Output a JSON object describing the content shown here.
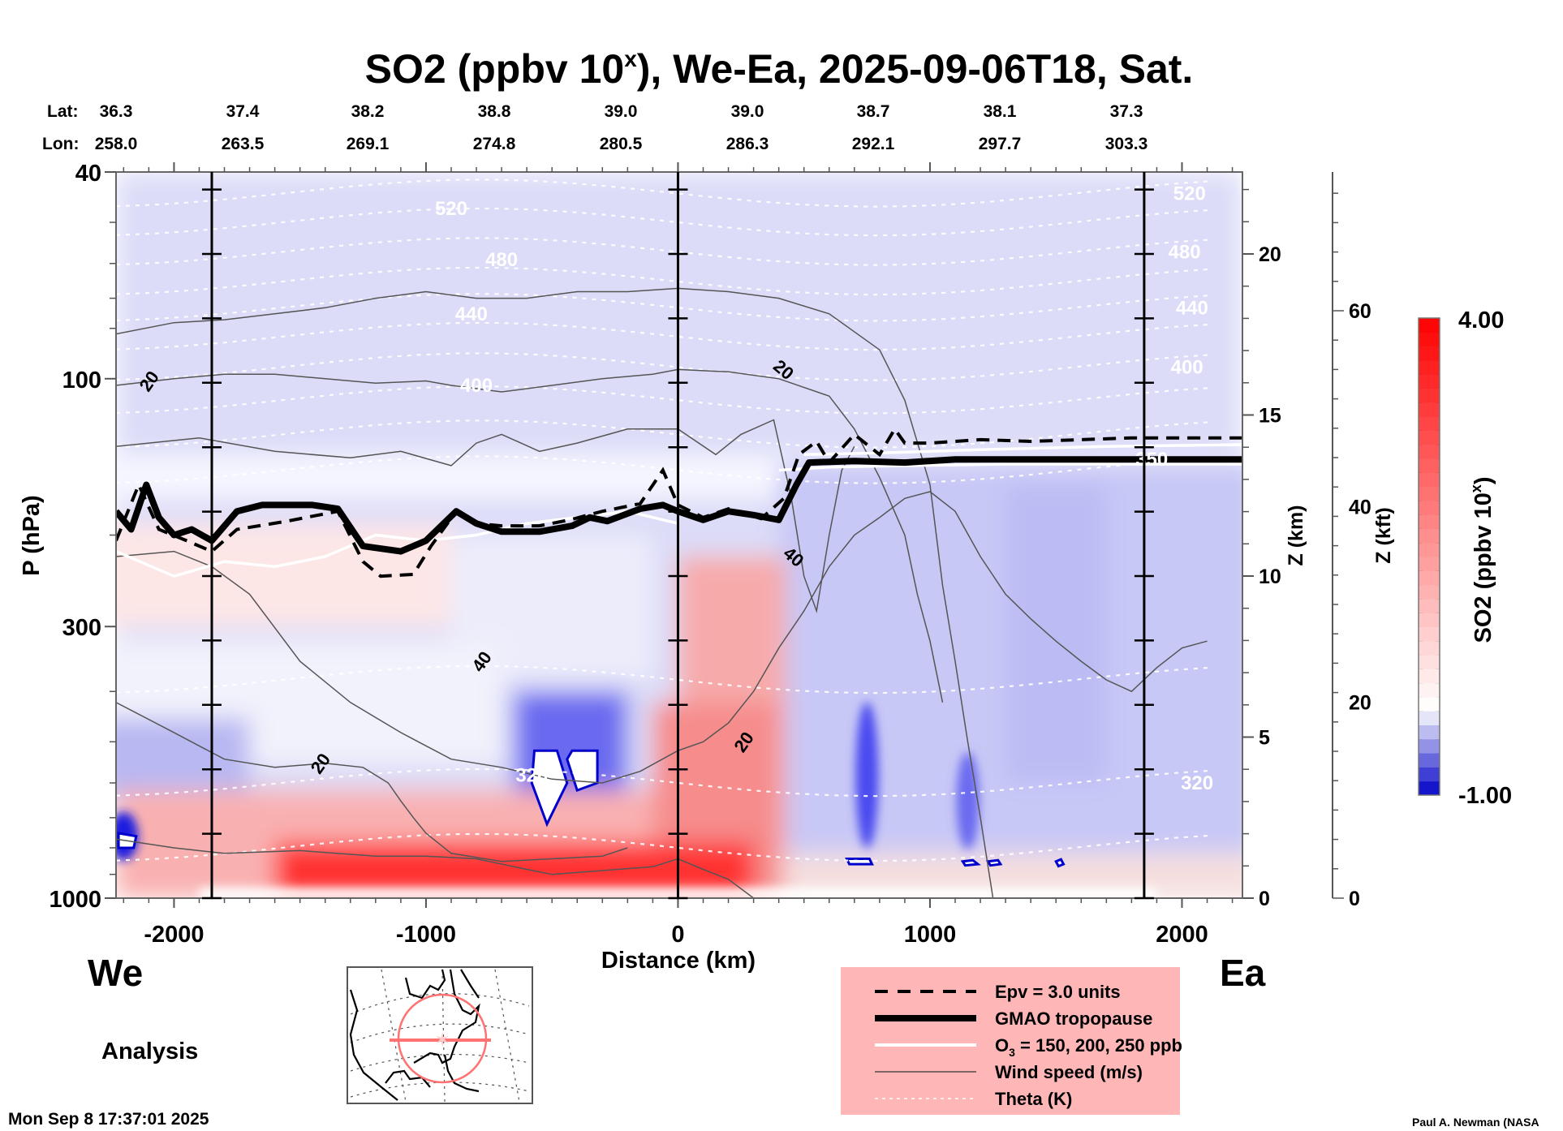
{
  "chart_data": {
    "type": "heatmap",
    "title": "SO2 (ppbv 10",
    "title_superscript": "x",
    "title_suffix": "), We-Ea, 2025-09-06T18, Sat.",
    "xlabel": "Distance (km)",
    "ylabel": "P (hPa)",
    "y2label": "Z (km)",
    "y3label": "Z (kft)",
    "colorbar_label": "SO2 (ppbv 10",
    "colorbar_label_sup": "x",
    "colorbar_label_suffix": ")",
    "colorbar_range": [
      -1.0,
      4.0
    ],
    "colorbar_max_label": "4.00",
    "colorbar_min_label": "-1.00",
    "xlim": [
      -2230,
      2240
    ],
    "ylim": [
      1000,
      40
    ],
    "yscale": "log",
    "x_ticks": [
      -2000,
      -1000,
      0,
      1000,
      2000
    ],
    "x_tick_labels": [
      "-2000",
      "-1000",
      "0",
      "1000",
      "2000"
    ],
    "y_ticks": [
      40,
      100,
      300,
      1000
    ],
    "y_tick_labels": [
      "40",
      "100",
      "300",
      "1000"
    ],
    "z_km_ticks": [
      0,
      5,
      10,
      15,
      20
    ],
    "z_km_tick_labels": [
      "0",
      "5",
      "10",
      "15",
      "20"
    ],
    "z_kft_ticks": [
      0,
      20,
      40,
      60
    ],
    "z_kft_tick_labels": [
      "0",
      "20",
      "40",
      "60"
    ],
    "lat_label": "Lat:",
    "lon_label": "Lon:",
    "lat": [
      "36.3",
      "37.4",
      "38.2",
      "38.8",
      "39.0",
      "39.0",
      "38.7",
      "38.1",
      "37.3"
    ],
    "lon": [
      "258.0",
      "263.5",
      "269.1",
      "274.8",
      "280.5",
      "286.3",
      "292.1",
      "297.7",
      "303.3"
    ],
    "vertical_markers_km": [
      -1850,
      0,
      1850
    ],
    "theta_labels": [
      {
        "text": "520",
        "x": -900,
        "p": 47
      },
      {
        "text": "480",
        "x": -700,
        "p": 59
      },
      {
        "text": "440",
        "x": -820,
        "p": 75
      },
      {
        "text": "400",
        "x": -800,
        "p": 103
      },
      {
        "text": "320",
        "x": -580,
        "p": 580
      },
      {
        "text": "520",
        "x": 2030,
        "p": 44
      },
      {
        "text": "480",
        "x": 2010,
        "p": 57
      },
      {
        "text": "440",
        "x": 2040,
        "p": 73
      },
      {
        "text": "400",
        "x": 2020,
        "p": 95
      },
      {
        "text": "320",
        "x": 2060,
        "p": 600
      },
      {
        "text": "350",
        "x": 1880,
        "p": 143
      }
    ],
    "theta_levels_p": [
      44,
      50,
      57,
      65,
      73,
      83,
      95,
      110,
      128,
      150,
      380,
      600,
      800
    ],
    "wind_labels": [
      {
        "text": "20",
        "x": -2100,
        "p": 101
      },
      {
        "text": "20",
        "x": 420,
        "p": 96
      },
      {
        "text": "40",
        "x": 460,
        "p": 220
      },
      {
        "text": "40",
        "x": -780,
        "p": 350
      },
      {
        "text": "20",
        "x": 260,
        "p": 500
      },
      {
        "text": "20",
        "x": -1420,
        "p": 550
      }
    ],
    "tropopause_gmao": [
      [
        -2230,
        180
      ],
      [
        -2170,
        195
      ],
      [
        -2110,
        160
      ],
      [
        -2060,
        185
      ],
      [
        -2000,
        200
      ],
      [
        -1930,
        195
      ],
      [
        -1850,
        205
      ],
      [
        -1750,
        180
      ],
      [
        -1650,
        175
      ],
      [
        -1450,
        175
      ],
      [
        -1350,
        178
      ],
      [
        -1250,
        210
      ],
      [
        -1100,
        215
      ],
      [
        -1000,
        205
      ],
      [
        -880,
        180
      ],
      [
        -800,
        190
      ],
      [
        -700,
        197
      ],
      [
        -550,
        197
      ],
      [
        -420,
        192
      ],
      [
        -350,
        185
      ],
      [
        -280,
        188
      ],
      [
        -150,
        178
      ],
      [
        -60,
        175
      ],
      [
        0,
        180
      ],
      [
        100,
        187
      ],
      [
        200,
        180
      ],
      [
        300,
        183
      ],
      [
        400,
        187
      ],
      [
        470,
        160
      ],
      [
        520,
        145
      ],
      [
        700,
        144
      ],
      [
        900,
        145
      ],
      [
        1100,
        143
      ],
      [
        1400,
        143
      ],
      [
        1800,
        143
      ],
      [
        2240,
        143
      ]
    ],
    "epv_3": [
      [
        -2230,
        205
      ],
      [
        -2140,
        160
      ],
      [
        -2060,
        195
      ],
      [
        -1950,
        205
      ],
      [
        -1850,
        215
      ],
      [
        -1750,
        195
      ],
      [
        -1550,
        188
      ],
      [
        -1350,
        180
      ],
      [
        -1250,
        225
      ],
      [
        -1180,
        240
      ],
      [
        -1050,
        238
      ],
      [
        -980,
        210
      ],
      [
        -880,
        180
      ],
      [
        -800,
        190
      ],
      [
        -700,
        192
      ],
      [
        -550,
        192
      ],
      [
        -430,
        187
      ],
      [
        -300,
        180
      ],
      [
        -150,
        174
      ],
      [
        -60,
        150
      ],
      [
        0,
        175
      ],
      [
        100,
        185
      ],
      [
        200,
        178
      ],
      [
        330,
        186
      ],
      [
        420,
        170
      ],
      [
        480,
        140
      ],
      [
        550,
        132
      ],
      [
        600,
        145
      ],
      [
        700,
        128
      ],
      [
        800,
        140
      ],
      [
        860,
        125
      ],
      [
        900,
        133
      ],
      [
        1000,
        133
      ],
      [
        1200,
        131
      ],
      [
        1400,
        132
      ],
      [
        1600,
        131
      ],
      [
        1800,
        130
      ],
      [
        2240,
        130
      ]
    ],
    "o3_contours": [
      [
        [
          -2230,
          215
        ],
        [
          -2000,
          240
        ],
        [
          -1800,
          225
        ],
        [
          -1600,
          230
        ],
        [
          -1400,
          220
        ],
        [
          -1200,
          200
        ],
        [
          -1000,
          205
        ],
        [
          -800,
          200
        ],
        [
          -600,
          190
        ],
        [
          -400,
          185
        ],
        [
          -200,
          180
        ],
        [
          0,
          190
        ]
      ],
      [
        [
          400,
          150
        ],
        [
          600,
          148
        ],
        [
          900,
          147
        ],
        [
          1300,
          146
        ],
        [
          1800,
          146
        ],
        [
          2240,
          146
        ]
      ],
      [
        [
          500,
          140
        ],
        [
          800,
          139
        ],
        [
          1200,
          137
        ],
        [
          1700,
          135
        ],
        [
          2240,
          134
        ]
      ]
    ],
    "wind_contours": [
      [
        [
          -2230,
          82
        ],
        [
          -2000,
          78
        ],
        [
          -1800,
          77
        ],
        [
          -1600,
          75
        ],
        [
          -1400,
          73
        ],
        [
          -1200,
          70
        ],
        [
          -1000,
          68
        ],
        [
          -800,
          70
        ],
        [
          -600,
          70
        ],
        [
          -400,
          68
        ],
        [
          -200,
          68
        ],
        [
          0,
          67
        ],
        [
          200,
          68
        ],
        [
          400,
          70
        ],
        [
          600,
          75
        ],
        [
          800,
          88
        ],
        [
          900,
          110
        ],
        [
          1000,
          160
        ],
        [
          1050,
          250
        ],
        [
          1100,
          350
        ],
        [
          1150,
          500
        ],
        [
          1200,
          700
        ],
        [
          1250,
          1000
        ]
      ],
      [
        [
          -2230,
          103
        ],
        [
          -2000,
          100
        ],
        [
          -1800,
          98
        ],
        [
          -1600,
          98
        ],
        [
          -1400,
          100
        ],
        [
          -1200,
          102
        ],
        [
          -1000,
          101
        ],
        [
          -900,
          103
        ],
        [
          -700,
          106
        ],
        [
          -500,
          103
        ],
        [
          -300,
          100
        ],
        [
          -100,
          98
        ],
        [
          0,
          96
        ],
        [
          200,
          97
        ],
        [
          400,
          100
        ],
        [
          600,
          108
        ],
        [
          700,
          125
        ],
        [
          800,
          155
        ],
        [
          900,
          200
        ],
        [
          950,
          260
        ],
        [
          1000,
          320
        ],
        [
          1050,
          420
        ]
      ],
      [
        [
          -2230,
          135
        ],
        [
          -1900,
          130
        ],
        [
          -1600,
          138
        ],
        [
          -1300,
          142
        ],
        [
          -1100,
          138
        ],
        [
          -900,
          147
        ],
        [
          -800,
          133
        ],
        [
          -700,
          128
        ],
        [
          -550,
          138
        ],
        [
          -400,
          133
        ],
        [
          -200,
          125
        ],
        [
          0,
          125
        ],
        [
          150,
          140
        ],
        [
          250,
          128
        ],
        [
          380,
          120
        ],
        [
          450,
          170
        ],
        [
          500,
          240
        ],
        [
          550,
          280
        ],
        [
          600,
          200
        ],
        [
          650,
          150
        ],
        [
          700,
          135
        ]
      ],
      [
        [
          -2230,
          220
        ],
        [
          -2000,
          215
        ],
        [
          -1850,
          230
        ],
        [
          -1700,
          260
        ],
        [
          -1500,
          350
        ],
        [
          -1300,
          420
        ],
        [
          -1100,
          480
        ],
        [
          -900,
          540
        ],
        [
          -700,
          560
        ],
        [
          -500,
          590
        ],
        [
          -300,
          600
        ],
        [
          -150,
          570
        ],
        [
          0,
          520
        ],
        [
          100,
          500
        ],
        [
          200,
          460
        ],
        [
          300,
          400
        ],
        [
          400,
          330
        ],
        [
          500,
          280
        ],
        [
          600,
          230
        ],
        [
          700,
          200
        ],
        [
          800,
          185
        ],
        [
          900,
          170
        ],
        [
          1000,
          165
        ],
        [
          1100,
          180
        ],
        [
          1200,
          220
        ],
        [
          1300,
          260
        ],
        [
          1400,
          290
        ],
        [
          1500,
          320
        ],
        [
          1600,
          350
        ],
        [
          1700,
          380
        ],
        [
          1800,
          400
        ],
        [
          1900,
          360
        ],
        [
          2000,
          330
        ],
        [
          2100,
          320
        ]
      ],
      [
        [
          -2230,
          420
        ],
        [
          -2000,
          480
        ],
        [
          -1800,
          540
        ],
        [
          -1600,
          560
        ],
        [
          -1400,
          550
        ],
        [
          -1250,
          560
        ],
        [
          -1150,
          600
        ],
        [
          -1100,
          650
        ],
        [
          -1050,
          700
        ],
        [
          -1000,
          750
        ],
        [
          -900,
          820
        ],
        [
          -700,
          850
        ],
        [
          -500,
          840
        ],
        [
          -300,
          830
        ],
        [
          -200,
          800
        ]
      ],
      [
        [
          -2230,
          770
        ],
        [
          -2000,
          800
        ],
        [
          -1800,
          820
        ],
        [
          -1500,
          810
        ],
        [
          -1200,
          830
        ],
        [
          -1000,
          830
        ],
        [
          -800,
          840
        ],
        [
          -600,
          880
        ],
        [
          -500,
          900
        ],
        [
          -300,
          885
        ],
        [
          -100,
          870
        ],
        [
          0,
          840
        ],
        [
          100,
          880
        ],
        [
          200,
          920
        ],
        [
          300,
          1000
        ]
      ]
    ]
  },
  "labels": {
    "we": "We",
    "ea": "Ea",
    "analysis": "Analysis",
    "timestamp": "Mon Sep  8 17:37:01 2025",
    "credit": "Paul A. Newman (NASA"
  },
  "legend": {
    "items": [
      {
        "label": "Epv = 3.0 units",
        "style": "dashed"
      },
      {
        "label": "GMAO tropopause",
        "style": "thick"
      },
      {
        "label": "O",
        "sub": "3",
        "label_suffix": " = 150, 200, 250 ppb",
        "style": "white"
      },
      {
        "label": "Wind speed (m/s)",
        "style": "thin"
      },
      {
        "label": "Theta (K)",
        "style": "dotted"
      }
    ],
    "background": "#ffb6b6"
  },
  "colors": {
    "max": "#ff0000",
    "mid": "#ffffff",
    "min": "#0000cc",
    "inset_track": "#ff6b6b"
  }
}
